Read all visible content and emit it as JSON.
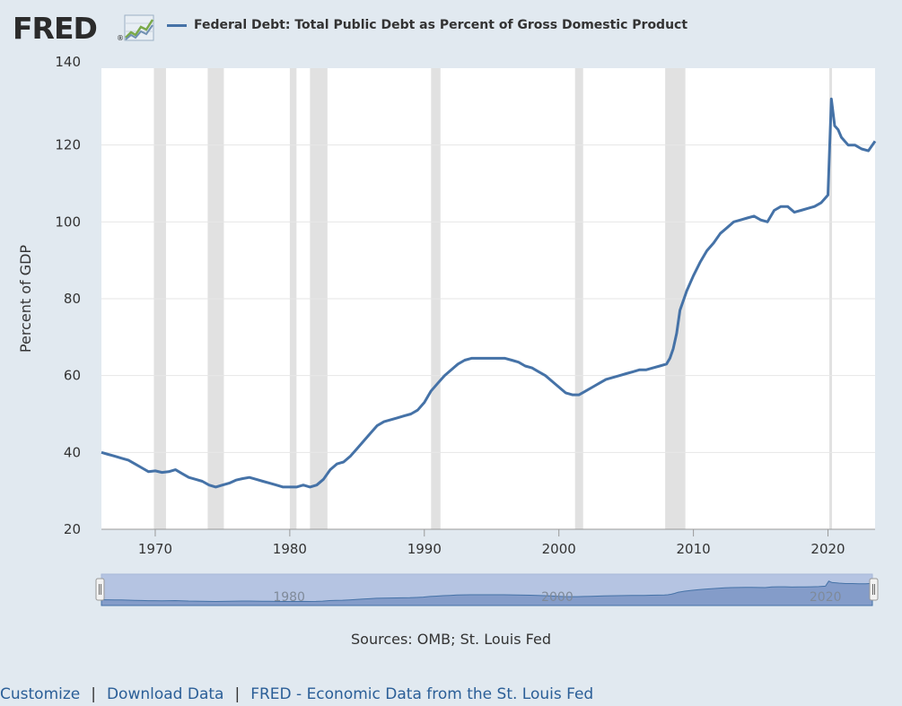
{
  "header": {
    "logo_text": "FRED",
    "logo_mark": "®",
    "series_title": "Federal Debt: Total Public Debt as Percent of Gross Domestic Product",
    "series_color": "#4572a7"
  },
  "chart_data": {
    "type": "line",
    "title": "Federal Debt: Total Public Debt as Percent of Gross Domestic Product",
    "ylabel": "Percent of GDP",
    "xlabel": "",
    "ylim": [
      20,
      140
    ],
    "xlim": [
      1966.0,
      2023.5
    ],
    "yticks": [
      20,
      40,
      60,
      80,
      100,
      120,
      140
    ],
    "xticks": [
      1970,
      1980,
      1990,
      2000,
      2010,
      2020
    ],
    "grid": true,
    "legend_position": "top",
    "line_color": "#4572a7",
    "recession_color": "#e1e1e1",
    "recessions": [
      [
        1969.9,
        1970.8
      ],
      [
        1973.9,
        1975.1
      ],
      [
        1980.0,
        1980.5
      ],
      [
        1981.5,
        1982.8
      ],
      [
        1990.5,
        1991.2
      ],
      [
        2001.2,
        2001.8
      ],
      [
        2007.9,
        2009.4
      ],
      [
        2020.1,
        2020.3
      ]
    ],
    "series": [
      {
        "name": "Federal Debt: Total Public Debt as Percent of Gross Domestic Product",
        "x": [
          1966.0,
          1966.5,
          1967.0,
          1967.5,
          1968.0,
          1968.5,
          1969.0,
          1969.5,
          1970.0,
          1970.5,
          1971.0,
          1971.5,
          1972.0,
          1972.5,
          1973.0,
          1973.5,
          1974.0,
          1974.5,
          1975.0,
          1975.5,
          1976.0,
          1976.5,
          1977.0,
          1977.5,
          1978.0,
          1978.5,
          1979.0,
          1979.5,
          1980.0,
          1980.5,
          1981.0,
          1981.5,
          1982.0,
          1982.5,
          1983.0,
          1983.5,
          1984.0,
          1984.5,
          1985.0,
          1985.5,
          1986.0,
          1986.5,
          1987.0,
          1987.5,
          1988.0,
          1988.5,
          1989.0,
          1989.5,
          1990.0,
          1990.5,
          1991.0,
          1991.5,
          1992.0,
          1992.5,
          1993.0,
          1993.5,
          1994.0,
          1994.5,
          1995.0,
          1995.5,
          1996.0,
          1996.5,
          1997.0,
          1997.5,
          1998.0,
          1998.5,
          1999.0,
          1999.5,
          2000.0,
          2000.5,
          2001.0,
          2001.5,
          2002.0,
          2002.5,
          2003.0,
          2003.5,
          2004.0,
          2004.5,
          2005.0,
          2005.5,
          2006.0,
          2006.5,
          2007.0,
          2007.5,
          2008.0,
          2008.25,
          2008.5,
          2008.75,
          2009.0,
          2009.5,
          2010.0,
          2010.5,
          2011.0,
          2011.5,
          2012.0,
          2012.5,
          2013.0,
          2013.5,
          2014.0,
          2014.5,
          2015.0,
          2015.5,
          2016.0,
          2016.5,
          2017.0,
          2017.5,
          2018.0,
          2018.5,
          2019.0,
          2019.5,
          2019.75,
          2020.0,
          2020.25,
          2020.5,
          2020.75,
          2021.0,
          2021.5,
          2022.0,
          2022.5,
          2023.0,
          2023.5
        ],
        "values": [
          40.0,
          39.5,
          39.0,
          38.5,
          38.0,
          37.0,
          36.0,
          35.0,
          35.2,
          34.8,
          35.0,
          35.5,
          34.5,
          33.5,
          33.0,
          32.5,
          31.5,
          31.0,
          31.5,
          32.0,
          32.8,
          33.2,
          33.5,
          33.0,
          32.5,
          32.0,
          31.5,
          31.0,
          31.0,
          31.0,
          31.5,
          31.0,
          31.5,
          33.0,
          35.5,
          37.0,
          37.5,
          39.0,
          41.0,
          43.0,
          45.0,
          47.0,
          48.0,
          48.5,
          49.0,
          49.5,
          50.0,
          51.0,
          53.0,
          56.0,
          58.0,
          60.0,
          61.5,
          63.0,
          64.0,
          64.5,
          64.5,
          64.5,
          64.5,
          64.5,
          64.5,
          64.0,
          63.5,
          62.5,
          62.0,
          61.0,
          60.0,
          58.5,
          57.0,
          55.5,
          55.0,
          55.0,
          56.0,
          57.0,
          58.0,
          59.0,
          59.5,
          60.0,
          60.5,
          61.0,
          61.5,
          61.5,
          62.0,
          62.5,
          63.0,
          64.5,
          67.0,
          71.0,
          77.0,
          82.0,
          86.0,
          89.5,
          92.5,
          94.5,
          97.0,
          98.5,
          100.0,
          100.5,
          101.0,
          101.5,
          100.5,
          100.0,
          103.0,
          104.0,
          104.0,
          102.5,
          103.0,
          103.5,
          104.0,
          105.0,
          106.0,
          107.0,
          132.0,
          125.0,
          124.0,
          122.0,
          120.0,
          120.0,
          119.0,
          118.5,
          121.0
        ]
      }
    ],
    "navigator": {
      "labels": [
        "1980",
        "2000",
        "2020"
      ]
    }
  },
  "footer": {
    "sources": "Sources: OMB; St. Louis Fed"
  },
  "links": {
    "customize": "Customize",
    "download": "Download Data",
    "fred": "FRED - Economic Data from the St. Louis Fed",
    "separator": "|"
  }
}
